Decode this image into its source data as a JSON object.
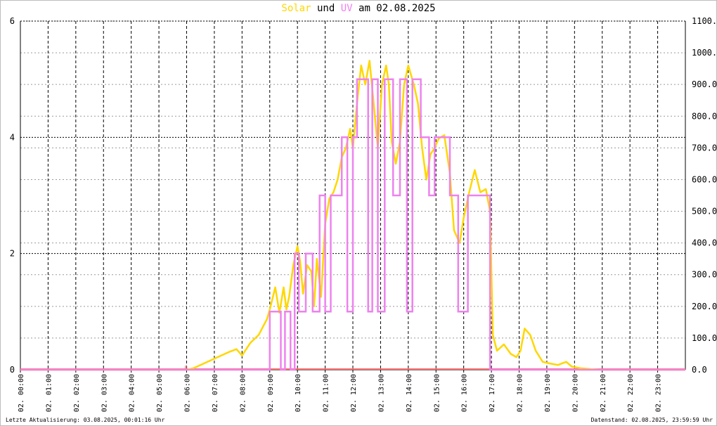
{
  "title": {
    "solar_label": "Solar",
    "und": "und",
    "uv_label": "UV",
    "am_date": "am 02.08.2025"
  },
  "footer": {
    "left": "Letzte Aktualisierung: 03.08.2025, 00:01:16 Uhr",
    "right": "Datenstand: 02.08.2025, 23:59:59 Uhr"
  },
  "colors": {
    "solar": "#ffd700",
    "uv": "#ee82ee",
    "grid": "#000000",
    "axis": "#000000",
    "baseline": "#ff6f6f"
  },
  "chart_data": {
    "type": "line",
    "xlabel": "",
    "grid": true,
    "x_tick_labels": [
      "02. 00:00",
      "02. 01:00",
      "02. 02:00",
      "02. 03:00",
      "02. 04:00",
      "02. 05:00",
      "02. 06:00",
      "02. 07:00",
      "02. 08:00",
      "02. 09:00",
      "02. 10:00",
      "02. 11:00",
      "02. 12:00",
      "02. 13:00",
      "02. 14:00",
      "02. 15:00",
      "02. 16:00",
      "02. 17:00",
      "02. 18:00",
      "02. 19:00",
      "02. 20:00",
      "02. 21:00",
      "02. 22:00",
      "02. 23:00"
    ],
    "x_range_hours": [
      0,
      24
    ],
    "y_left": {
      "ylim": [
        0,
        6
      ],
      "ticks": [
        "0",
        "2",
        "4",
        "6"
      ],
      "series": "UV"
    },
    "y_right": {
      "ylim": [
        0,
        1100
      ],
      "ticks": [
        "0.0",
        "100.0",
        "200.0",
        "300.0",
        "400.0",
        "500.0",
        "600.0",
        "700.0",
        "800.0",
        "900.0",
        "1000.0",
        "1100.0"
      ],
      "series": "Solar"
    },
    "start_marker": "0",
    "series": [
      {
        "name": "Solar",
        "axis": "right",
        "points": [
          [
            0,
            0
          ],
          [
            6.0,
            0
          ],
          [
            6.25,
            5
          ],
          [
            6.5,
            15
          ],
          [
            7.0,
            35
          ],
          [
            7.5,
            55
          ],
          [
            7.8,
            65
          ],
          [
            8.0,
            45
          ],
          [
            8.3,
            85
          ],
          [
            8.6,
            110
          ],
          [
            8.9,
            160
          ],
          [
            9.0,
            190
          ],
          [
            9.2,
            260
          ],
          [
            9.35,
            180
          ],
          [
            9.5,
            260
          ],
          [
            9.6,
            190
          ],
          [
            9.7,
            230
          ],
          [
            9.85,
            330
          ],
          [
            10.0,
            390
          ],
          [
            10.1,
            340
          ],
          [
            10.2,
            240
          ],
          [
            10.35,
            330
          ],
          [
            10.5,
            310
          ],
          [
            10.6,
            200
          ],
          [
            10.7,
            350
          ],
          [
            10.85,
            230
          ],
          [
            11.0,
            460
          ],
          [
            11.15,
            540
          ],
          [
            11.3,
            560
          ],
          [
            11.45,
            600
          ],
          [
            11.6,
            670
          ],
          [
            11.75,
            700
          ],
          [
            11.9,
            760
          ],
          [
            12.0,
            700
          ],
          [
            12.15,
            840
          ],
          [
            12.3,
            960
          ],
          [
            12.45,
            900
          ],
          [
            12.6,
            975
          ],
          [
            12.75,
            840
          ],
          [
            12.9,
            700
          ],
          [
            13.05,
            900
          ],
          [
            13.2,
            960
          ],
          [
            13.3,
            900
          ],
          [
            13.4,
            720
          ],
          [
            13.55,
            650
          ],
          [
            13.7,
            720
          ],
          [
            13.85,
            900
          ],
          [
            14.0,
            960
          ],
          [
            14.2,
            900
          ],
          [
            14.35,
            840
          ],
          [
            14.5,
            700
          ],
          [
            14.65,
            600
          ],
          [
            14.8,
            680
          ],
          [
            14.95,
            700
          ],
          [
            15.1,
            730
          ],
          [
            15.3,
            740
          ],
          [
            15.5,
            620
          ],
          [
            15.65,
            440
          ],
          [
            15.85,
            400
          ],
          [
            16.0,
            480
          ],
          [
            16.2,
            560
          ],
          [
            16.4,
            630
          ],
          [
            16.6,
            560
          ],
          [
            16.8,
            570
          ],
          [
            16.95,
            500
          ],
          [
            17.05,
            110
          ],
          [
            17.2,
            60
          ],
          [
            17.45,
            80
          ],
          [
            17.7,
            50
          ],
          [
            17.9,
            40
          ],
          [
            18.05,
            60
          ],
          [
            18.2,
            130
          ],
          [
            18.4,
            110
          ],
          [
            18.6,
            60
          ],
          [
            18.85,
            25
          ],
          [
            19.1,
            20
          ],
          [
            19.4,
            15
          ],
          [
            19.7,
            25
          ],
          [
            19.9,
            10
          ],
          [
            20.2,
            5
          ],
          [
            20.6,
            2
          ],
          [
            21.0,
            0
          ],
          [
            24,
            0
          ]
        ]
      },
      {
        "name": "UV",
        "axis": "left",
        "points": [
          [
            0,
            0
          ],
          [
            9.0,
            0
          ],
          [
            9.0,
            1
          ],
          [
            9.4,
            1
          ],
          [
            9.4,
            0
          ],
          [
            9.55,
            0
          ],
          [
            9.55,
            1
          ],
          [
            9.75,
            1
          ],
          [
            9.75,
            0
          ],
          [
            9.9,
            0
          ],
          [
            9.9,
            2
          ],
          [
            10.05,
            2
          ],
          [
            10.05,
            1
          ],
          [
            10.3,
            1
          ],
          [
            10.3,
            2
          ],
          [
            10.55,
            2
          ],
          [
            10.55,
            1
          ],
          [
            10.8,
            1
          ],
          [
            10.8,
            3
          ],
          [
            11.0,
            3
          ],
          [
            11.0,
            1
          ],
          [
            11.2,
            1
          ],
          [
            11.2,
            3
          ],
          [
            11.6,
            3
          ],
          [
            11.6,
            4
          ],
          [
            11.8,
            4
          ],
          [
            11.8,
            1
          ],
          [
            12.0,
            1
          ],
          [
            12.0,
            4
          ],
          [
            12.15,
            4
          ],
          [
            12.15,
            5
          ],
          [
            12.55,
            5
          ],
          [
            12.55,
            1
          ],
          [
            12.7,
            1
          ],
          [
            12.7,
            5
          ],
          [
            12.9,
            5
          ],
          [
            12.9,
            1
          ],
          [
            13.15,
            1
          ],
          [
            13.15,
            5
          ],
          [
            13.45,
            5
          ],
          [
            13.45,
            3
          ],
          [
            13.7,
            3
          ],
          [
            13.7,
            5
          ],
          [
            13.95,
            5
          ],
          [
            13.95,
            1
          ],
          [
            14.15,
            1
          ],
          [
            14.15,
            5
          ],
          [
            14.45,
            5
          ],
          [
            14.45,
            4
          ],
          [
            14.75,
            4
          ],
          [
            14.75,
            3
          ],
          [
            14.95,
            3
          ],
          [
            14.95,
            4
          ],
          [
            15.5,
            4
          ],
          [
            15.5,
            3
          ],
          [
            15.8,
            3
          ],
          [
            15.8,
            1
          ],
          [
            16.15,
            1
          ],
          [
            16.15,
            3
          ],
          [
            16.95,
            3
          ],
          [
            16.95,
            0
          ],
          [
            24,
            0
          ]
        ]
      }
    ]
  }
}
